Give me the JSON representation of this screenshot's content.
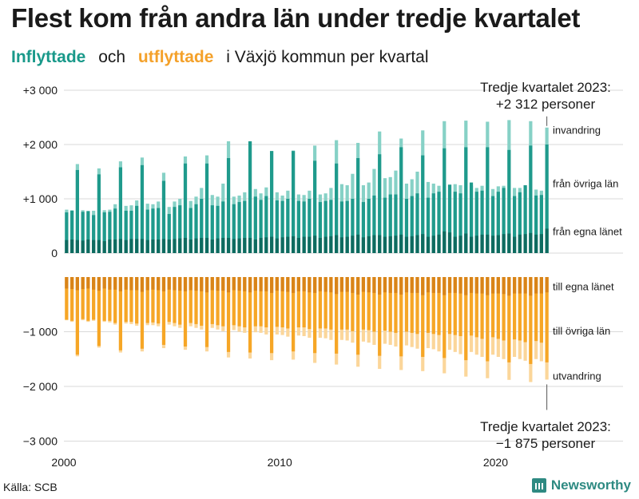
{
  "title": "Flest kom från andra län under tredje kvartalet",
  "subtitle": {
    "in_word": "Inflyttade",
    "and_word": "och",
    "out_word": "utflyttade",
    "rest": "i Växjö  kommun  per  kvartal"
  },
  "source": "Källa: SCB",
  "brand": "Newsworthy",
  "colors": {
    "in_own": "#0e6b60",
    "in_other": "#1f9a8c",
    "in_immig": "#86d1c6",
    "out_own": "#d98418",
    "out_other": "#f6a626",
    "out_emig": "#fbd69a",
    "grid": "#d9d9d9",
    "text": "#1a1a1a"
  },
  "chart_data": {
    "type": "bar",
    "title": "Flest kom från andra län under tredje kvartalet",
    "xlabel": "",
    "ylabel": "",
    "ylim": [
      -3000,
      3000
    ],
    "y_ticks": [
      3000,
      2000,
      1000,
      0,
      -1000,
      -2000,
      -3000
    ],
    "y_tick_labels": [
      "+3 000",
      "+2 000",
      "+1 000",
      "0",
      "−1 000",
      "−2 000",
      "−3 000"
    ],
    "x_ticks": [
      2000,
      2010,
      2020
    ],
    "x_tick_labels": [
      "2000",
      "2010",
      "2020"
    ],
    "start_year": 2000,
    "quarters_per_year": 4,
    "series_labels": {
      "in_immig": "invandring",
      "in_other": "från övriga län",
      "in_own": "från egna länet",
      "out_own": "till egna länet",
      "out_other": "till övriga län",
      "out_emig": "utvandring"
    },
    "annotations": {
      "in_label": "Tredje kvartalet 2023:",
      "in_value": "+2 312 personer",
      "out_label": "Tredje kvartalet 2023:",
      "out_value": "−1 875 personer"
    },
    "in_own": [
      240,
      250,
      240,
      230,
      250,
      240,
      240,
      220,
      250,
      250,
      260,
      240,
      260,
      260,
      260,
      240,
      250,
      250,
      260,
      250,
      260,
      270,
      280,
      250,
      270,
      280,
      280,
      250,
      270,
      280,
      280,
      260,
      270,
      280,
      280,
      250,
      280,
      290,
      300,
      270,
      290,
      300,
      310,
      280,
      300,
      300,
      320,
      280,
      300,
      310,
      330,
      290,
      300,
      320,
      340,
      290,
      310,
      330,
      330,
      300,
      310,
      320,
      340,
      300,
      310,
      330,
      350,
      300,
      320,
      340,
      400,
      380,
      300,
      320,
      360,
      300,
      320,
      340,
      340,
      320,
      330,
      350,
      360,
      300,
      340,
      350,
      370,
      340,
      350,
      450
    ],
    "in_other": [
      750,
      780,
      1530,
      760,
      770,
      700,
      1450,
      750,
      760,
      820,
      1580,
      780,
      780,
      870,
      1620,
      800,
      820,
      830,
      1330,
      720,
      850,
      880,
      1650,
      830,
      900,
      1000,
      1650,
      880,
      870,
      950,
      1750,
      900,
      940,
      960,
      2060,
      1040,
      980,
      1050,
      1880,
      970,
      960,
      1000,
      1880,
      960,
      950,
      1000,
      1700,
      940,
      960,
      980,
      1650,
      950,
      960,
      1000,
      1750,
      940,
      1000,
      1060,
      1820,
      1020,
      1080,
      1080,
      1950,
      1000,
      1050,
      1100,
      1800,
      1020,
      1100,
      1130,
      1930,
      1260,
      1130,
      1100,
      1950,
      1300,
      1130,
      1150,
      1950,
      1050,
      1130,
      1200,
      1900,
      1050,
      1120,
      1250,
      1980,
      1060,
      1070,
      2000
    ],
    "in_immig": [
      800,
      790,
      1640,
      790,
      780,
      780,
      1560,
      790,
      800,
      900,
      1690,
      870,
      880,
      970,
      1760,
      910,
      900,
      950,
      1480,
      850,
      950,
      1000,
      1780,
      960,
      1040,
      1200,
      1800,
      1070,
      1040,
      1280,
      2060,
      1040,
      1060,
      1120,
      2050,
      1180,
      1100,
      1210,
      1880,
      1120,
      1060,
      1150,
      1890,
      1080,
      1070,
      1150,
      1980,
      1080,
      1100,
      1200,
      2080,
      1270,
      1250,
      1460,
      2030,
      1250,
      1300,
      1550,
      2240,
      1380,
      1400,
      1520,
      2110,
      1280,
      1360,
      1500,
      2260,
      1310,
      1280,
      1240,
      2430,
      1260,
      1270,
      1250,
      2440,
      1240,
      1200,
      1240,
      2420,
      1180,
      1230,
      1240,
      2450,
      1200,
      1200,
      1220,
      2430,
      1170,
      1150,
      2312
    ],
    "out_own": [
      210,
      220,
      240,
      220,
      210,
      230,
      250,
      210,
      230,
      230,
      260,
      230,
      240,
      240,
      270,
      240,
      230,
      240,
      260,
      230,
      240,
      250,
      260,
      240,
      250,
      260,
      280,
      240,
      250,
      250,
      280,
      240,
      250,
      260,
      280,
      250,
      260,
      260,
      290,
      250,
      260,
      270,
      290,
      260,
      260,
      280,
      290,
      260,
      270,
      280,
      310,
      270,
      270,
      290,
      320,
      270,
      280,
      290,
      320,
      280,
      290,
      290,
      320,
      280,
      290,
      290,
      330,
      280,
      290,
      290,
      330,
      290,
      290,
      300,
      330,
      290,
      300,
      300,
      330,
      300,
      300,
      310,
      340,
      300,
      300,
      300,
      340,
      300,
      300,
      280
    ],
    "out_other": [
      780,
      800,
      1420,
      770,
      800,
      780,
      1260,
      800,
      800,
      840,
      1340,
      820,
      820,
      850,
      1310,
      840,
      830,
      850,
      1240,
      820,
      840,
      870,
      1270,
      840,
      860,
      890,
      1280,
      860,
      880,
      900,
      1370,
      880,
      900,
      920,
      1380,
      900,
      900,
      920,
      1390,
      910,
      920,
      940,
      1360,
      920,
      920,
      950,
      1390,
      940,
      940,
      960,
      1400,
      960,
      960,
      990,
      1420,
      960,
      970,
      1000,
      1440,
      980,
      1000,
      1020,
      1450,
      1000,
      1020,
      1040,
      1460,
      1020,
      1040,
      1060,
      1480,
      1040,
      1060,
      1080,
      1520,
      1070,
      1100,
      1130,
      1540,
      1100,
      1130,
      1160,
      1560,
      1140,
      1160,
      1190,
      1590,
      1170,
      1200,
      1560
    ],
    "out_emig": [
      790,
      820,
      1450,
      790,
      820,
      800,
      1290,
      820,
      830,
      870,
      1380,
      850,
      860,
      890,
      1360,
      880,
      880,
      900,
      1300,
      870,
      900,
      930,
      1330,
      900,
      930,
      960,
      1360,
      930,
      960,
      990,
      1470,
      970,
      1000,
      1020,
      1490,
      1010,
      1020,
      1050,
      1520,
      1050,
      1060,
      1090,
      1510,
      1070,
      1080,
      1110,
      1570,
      1110,
      1120,
      1150,
      1600,
      1150,
      1160,
      1200,
      1640,
      1180,
      1200,
      1240,
      1680,
      1220,
      1240,
      1270,
      1700,
      1250,
      1280,
      1310,
      1720,
      1300,
      1320,
      1360,
      1760,
      1330,
      1370,
      1410,
      1820,
      1370,
      1420,
      1460,
      1850,
      1420,
      1460,
      1500,
      1880,
      1460,
      1500,
      1530,
      1920,
      1500,
      1540,
      1875
    ]
  }
}
